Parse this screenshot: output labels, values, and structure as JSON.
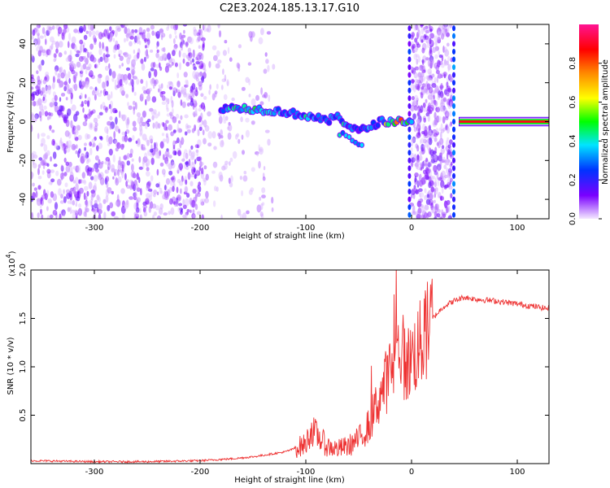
{
  "title": "C2E3.2024.185.13.17.G10",
  "chart_data": [
    {
      "type": "heatmap",
      "xlabel": "Height of straight line (km)",
      "ylabel": "Frequency (Hz)",
      "xlim": [
        -360,
        130
      ],
      "ylim": [
        -50,
        50
      ],
      "xticks": [
        -300,
        -200,
        -100,
        0,
        100
      ],
      "yticks": [
        -40,
        -20,
        0,
        20,
        40
      ],
      "colorbar": {
        "label": "Normalized spectral amplitude",
        "range": [
          0,
          1
        ],
        "ticks": [
          "0.0",
          "0.2",
          "0.4",
          "0.6",
          "0.8"
        ],
        "stops": [
          "#f4e8ff",
          "#7a00ff",
          "#0033ff",
          "#00e5ff",
          "#00ff00",
          "#ffff00",
          "#ff8800",
          "#ff0000",
          "#ff1493"
        ]
      },
      "ridge": {
        "x": [
          -180,
          -160,
          -140,
          -120,
          -100,
          -90,
          -80,
          -70,
          -60,
          -50,
          -40,
          -30,
          -20,
          -10,
          -3,
          0,
          45,
          60,
          100,
          130
        ],
        "f": [
          7,
          7,
          6,
          5,
          3,
          2,
          0,
          3,
          -2,
          -5,
          -3,
          0,
          0,
          0,
          1,
          0,
          0,
          0,
          0,
          0
        ],
        "amp": [
          0.3,
          0.4,
          0.35,
          0.3,
          0.35,
          0.3,
          0.25,
          0.4,
          0.3,
          0.2,
          0.3,
          0.3,
          0.6,
          0.7,
          0.5,
          0.45,
          0.95,
          1.0,
          1.0,
          1.0
        ]
      }
    },
    {
      "type": "line",
      "xlabel": "Height of straight line (km)",
      "ylabel": "SNR (10 * v/v)",
      "yscale_label": "(x10",
      "yscale_exp": "4",
      "xlim": [
        -360,
        130
      ],
      "ylim": [
        0,
        2.0
      ],
      "xticks": [
        -300,
        -200,
        -100,
        0,
        100
      ],
      "yticks": [
        "0.5",
        "1.0",
        "1.5",
        "2.0"
      ],
      "color": "#ee3333",
      "series": [
        {
          "x": [
            -360,
            -300,
            -250,
            -200,
            -170,
            -150,
            -120,
            -100,
            -95,
            -90,
            -80,
            -70,
            -60,
            -50,
            -40,
            -30,
            -20,
            -15,
            -10,
            -5,
            0,
            10,
            20,
            30,
            40,
            50,
            60,
            80,
            100,
            130
          ],
          "y": [
            0.03,
            0.02,
            0.02,
            0.03,
            0.05,
            0.07,
            0.12,
            0.2,
            0.35,
            0.3,
            0.18,
            0.15,
            0.18,
            0.25,
            0.4,
            0.7,
            0.95,
            1.1,
            1.2,
            1.0,
            1.1,
            1.25,
            1.5,
            1.62,
            1.68,
            1.72,
            1.7,
            1.68,
            1.65,
            1.6
          ]
        }
      ]
    }
  ]
}
